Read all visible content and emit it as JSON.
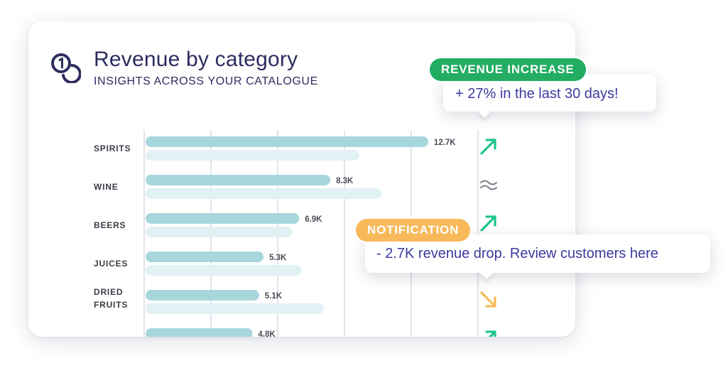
{
  "header": {
    "title": "Revenue by category",
    "subtitle": "INSIGHTS ACROSS YOUR CATALOGUE",
    "logo_icon": "coins-icon"
  },
  "revenue_badge": {
    "label": "REVENUE INCREASE",
    "message": "+ 27% in the last 30 days!",
    "color": "#22ad62"
  },
  "notification_badge": {
    "label": "NOTIFICATION",
    "message": "- 2.7K revenue drop. Review customers here",
    "color": "#f7b95a"
  },
  "colors": {
    "current_bar": "#a7d7dc",
    "previous_bar": "#e1f1f4",
    "trend_up": "#1dc48c",
    "trend_down": "#f7b95a",
    "trend_flat": "#7a7f8a",
    "label": "#3a3d47",
    "value_label": "#4a4d57",
    "grid": "#d3d6dc"
  },
  "chart_data": {
    "type": "bar",
    "orientation": "horizontal",
    "title": "Revenue by category",
    "subtitle": "INSIGHTS ACROSS YOUR CATALOGUE",
    "xlim": [
      0,
      15000
    ],
    "grid_step": 3000,
    "categories": [
      "SPIRITS",
      "WINE",
      "BEERS",
      "JUICES",
      "DRIED FRUITS",
      ""
    ],
    "series": [
      {
        "name": "current",
        "values": [
          12700,
          8300,
          6900,
          5300,
          5100,
          4800
        ],
        "value_labels": [
          "12.7K",
          "8.3K",
          "6.9K",
          "5.3K",
          "5.1K",
          "4.8K"
        ]
      },
      {
        "name": "previous",
        "values": [
          9600,
          10600,
          6600,
          7000,
          8000,
          null
        ]
      }
    ],
    "trends": [
      "up",
      "flat",
      "up",
      "none",
      "down",
      "up"
    ]
  }
}
